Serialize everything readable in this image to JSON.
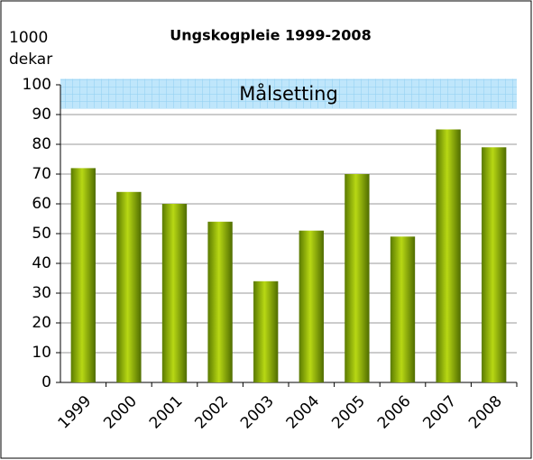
{
  "chart_data": {
    "type": "bar",
    "title": "Ungskogpleie 1999-2008",
    "ylabel_lines": [
      "1000",
      "dekar"
    ],
    "categories": [
      "1999",
      "2000",
      "2001",
      "2002",
      "2003",
      "2004",
      "2005",
      "2006",
      "2007",
      "2008"
    ],
    "values": [
      72,
      64,
      60,
      54,
      34,
      51,
      70,
      49,
      85,
      79
    ],
    "color": "#8fb000",
    "ylim": [
      0,
      100
    ],
    "yticks": [
      0,
      10,
      20,
      30,
      40,
      50,
      60,
      70,
      80,
      90,
      100
    ],
    "grid": true,
    "target_label": "Målsetting",
    "target_band": [
      92,
      102
    ]
  }
}
